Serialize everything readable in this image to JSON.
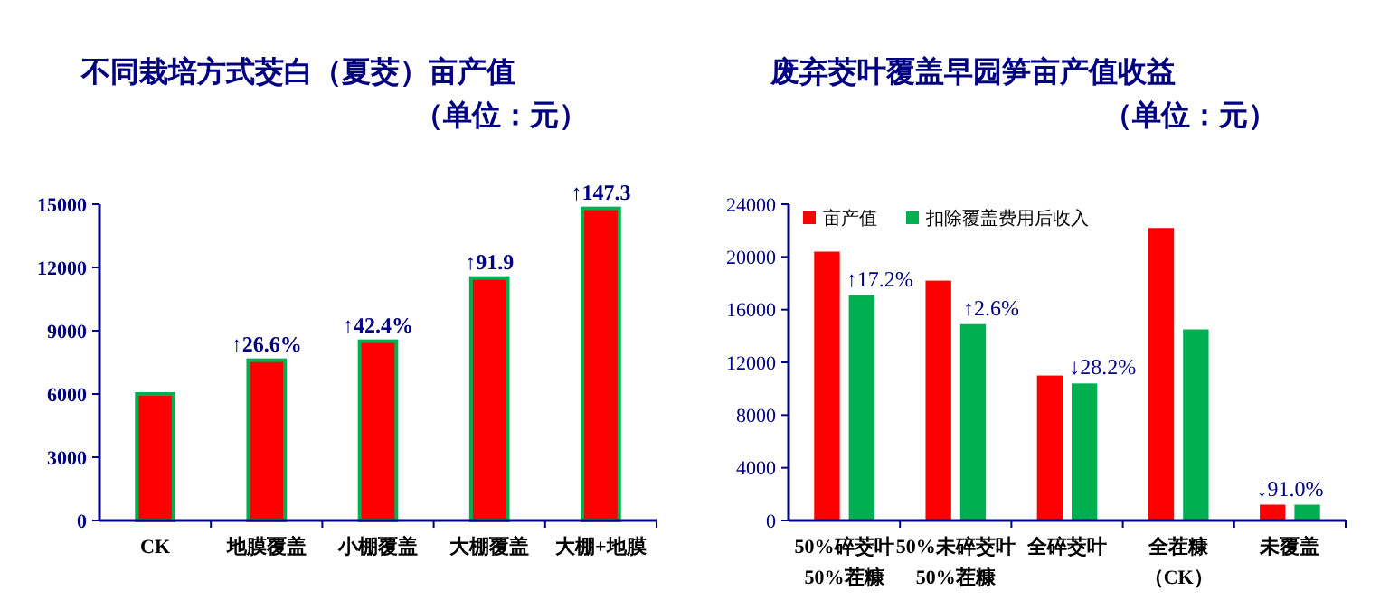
{
  "chart_data": [
    {
      "type": "bar",
      "title": "不同栽培方式茭白（夏茭）亩产值",
      "subtitle": "（单位：元）",
      "categories": [
        "CK",
        "地膜覆盖",
        "小棚覆盖",
        "大棚覆盖",
        "大棚+地膜"
      ],
      "values": [
        6000,
        7600,
        8500,
        11500,
        14800
      ],
      "color": "#ff0000",
      "ylim": [
        0,
        15000
      ],
      "yticks": [
        0,
        3000,
        6000,
        9000,
        12000,
        15000
      ],
      "grid": false,
      "legend": false,
      "annotations": [
        {
          "text": "↑26.6%",
          "x": "地膜覆盖",
          "y": 7600
        },
        {
          "text": "↑42.4%",
          "x": "小棚覆盖",
          "y": 8500
        },
        {
          "text": "↑91.9",
          "x": "大棚覆盖",
          "y": 11500
        },
        {
          "text": "↑147.3",
          "x": "大棚+地膜",
          "y": 14800
        }
      ]
    },
    {
      "type": "bar",
      "title": "废弃茭叶覆盖早园笋亩产值收益",
      "subtitle": "（单位：元）",
      "categories": [
        "50%碎茭叶50%茬糠",
        "50%未碎茭叶50%茬糠",
        "全碎茭叶",
        "全茬糠（CK）",
        "未覆盖"
      ],
      "series": [
        {
          "name": "亩产值",
          "color": "#ff0000",
          "values": [
            20400,
            18200,
            11000,
            22200,
            1200
          ]
        },
        {
          "name": "扣除覆盖费用后收入",
          "color": "#00b050",
          "values": [
            17100,
            14900,
            10400,
            14500,
            1200
          ]
        }
      ],
      "ylim": [
        0,
        24000
      ],
      "yticks": [
        0,
        4000,
        8000,
        12000,
        16000,
        20000,
        24000
      ],
      "grid": false,
      "legend": "top left",
      "annotations": [
        {
          "text": "↑17.2%",
          "x": "50%碎茭叶50%茬糠",
          "y": 17100
        },
        {
          "text": "↑2.6%",
          "x": "50%未碎茭叶50%茬糠",
          "y": 14900
        },
        {
          "text": "↓28.2%",
          "x": "全碎茭叶",
          "y": 10400
        },
        {
          "text": "↓91.0%",
          "x": "未覆盖",
          "y": 1200
        }
      ]
    }
  ]
}
